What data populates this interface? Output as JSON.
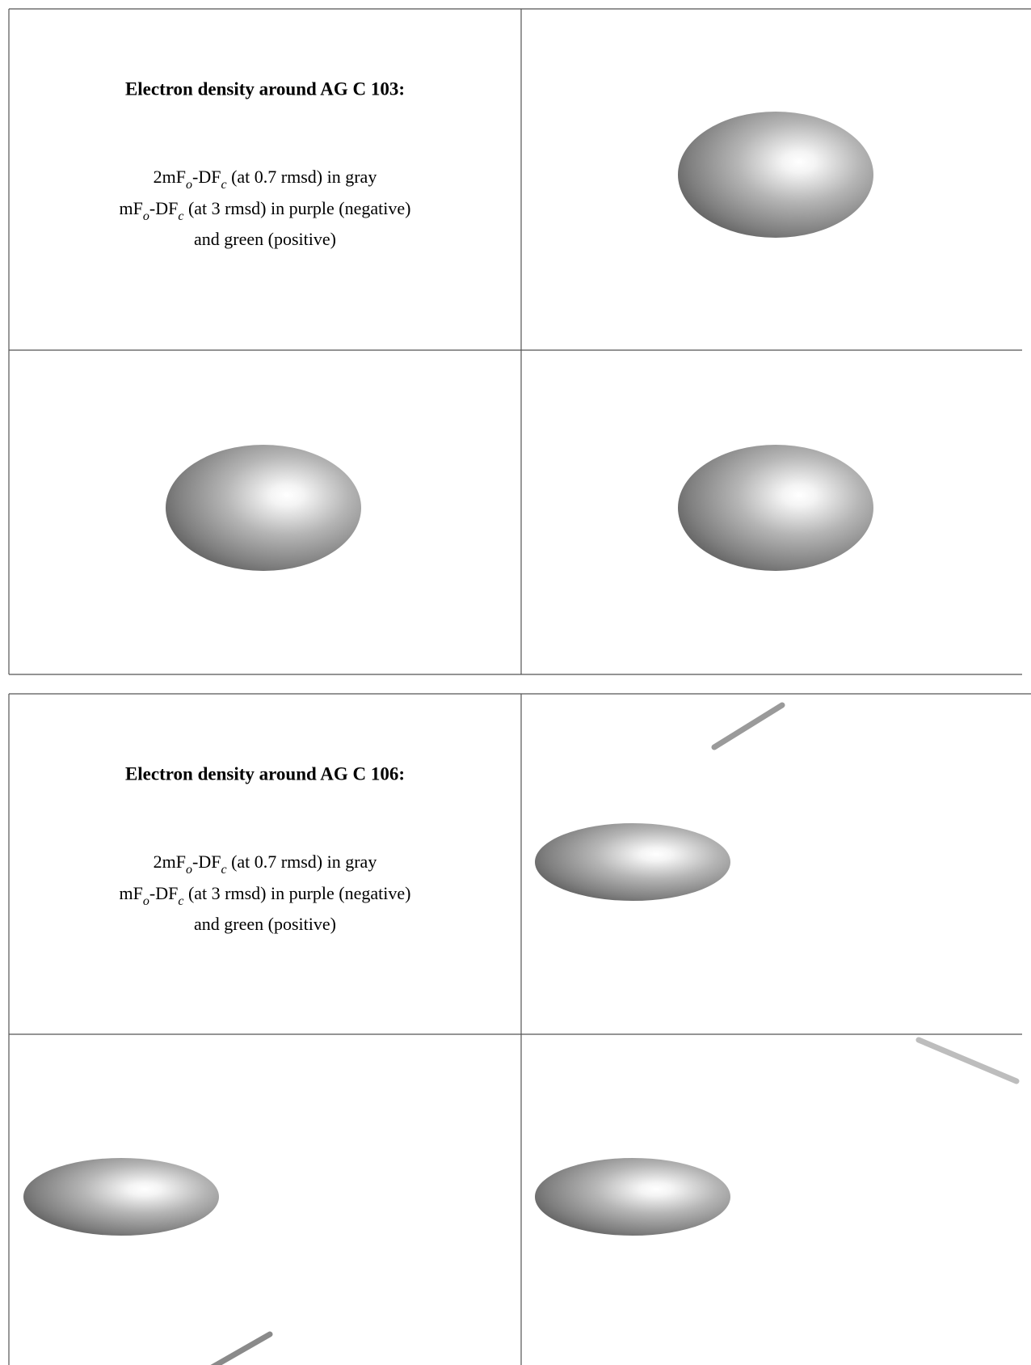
{
  "tables": [
    {
      "title": "Electron density around AG C 103:",
      "lines": [
        [
          {
            "text": "2mF"
          },
          {
            "text": "o",
            "sub": true
          },
          {
            "text": "-DF"
          },
          {
            "text": "c",
            "sub": true
          },
          {
            "text": " (at 0.7 rmsd) in gray"
          }
        ],
        [
          {
            "text": "mF"
          },
          {
            "text": "o",
            "sub": true
          },
          {
            "text": "-DF"
          },
          {
            "text": "c",
            "sub": true
          },
          {
            "text": " (at 3 rmsd) in purple (negative)"
          }
        ],
        [
          {
            "text": "and green (positive)"
          }
        ]
      ]
    },
    {
      "title": "Electron density around AG C 106:",
      "lines": [
        [
          {
            "text": "2mF"
          },
          {
            "text": "o",
            "sub": true
          },
          {
            "text": "-DF"
          },
          {
            "text": "c",
            "sub": true
          },
          {
            "text": " (at 0.7 rmsd) in gray"
          }
        ],
        [
          {
            "text": "mF"
          },
          {
            "text": "o",
            "sub": true
          },
          {
            "text": "-DF"
          },
          {
            "text": "c",
            "sub": true
          },
          {
            "text": " (at 3 rmsd) in purple (negative)"
          }
        ],
        [
          {
            "text": "and green (positive)"
          }
        ]
      ]
    }
  ]
}
